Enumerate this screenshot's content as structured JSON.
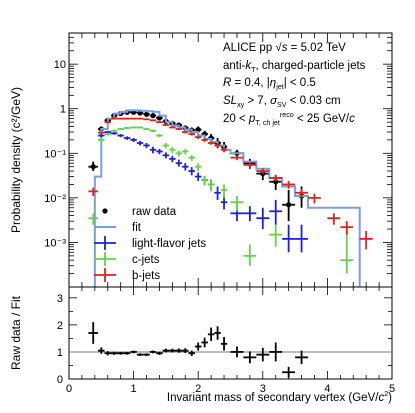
{
  "chart_data": [
    {
      "type": "scatter",
      "panel": "top",
      "ylabel": "Probability density (c²/GeV)",
      "yscale": "log",
      "xlim": [
        0,
        5
      ],
      "ylim": [
        0.0001,
        50
      ],
      "y_tick_labels": [
        "10⁻³",
        "10⁻²",
        "10⁻¹",
        "1",
        "10"
      ],
      "annotations": [
        "ALICE pp √s = 5.02 TeV",
        "anti-kT, charged-particle jets",
        "R = 0.4, |ηjet| < 0.5",
        "SLxy > 7, σSV < 0.03 cm",
        "20 < pT,ch jet reco < 25 GeV/c"
      ],
      "annotation_rich": [
        [
          [
            "ALICE pp ",
            0
          ],
          [
            "√",
            0
          ],
          [
            "s",
            1
          ],
          [
            " = 5.02 TeV",
            0
          ]
        ],
        [
          [
            "anti-",
            0
          ],
          [
            "k",
            1
          ],
          [
            "T",
            3
          ],
          [
            ", charged-particle jets",
            0
          ]
        ],
        [
          [
            "R",
            1
          ],
          [
            " = 0.4, |",
            0
          ],
          [
            "η",
            1
          ],
          [
            "jet",
            3
          ],
          [
            "| < 0.5",
            0
          ]
        ],
        [
          [
            " S",
            1
          ],
          [
            "L",
            1
          ],
          [
            "xy",
            3
          ],
          [
            " > 7, ",
            0
          ],
          [
            "σ",
            1
          ],
          [
            "SV",
            3
          ],
          [
            " < 0.03 cm",
            0
          ]
        ],
        [
          [
            "20 < ",
            0
          ],
          [
            "p",
            1
          ],
          [
            "T, ch jet",
            3
          ],
          [
            "reco",
            2
          ],
          [
            " < 25 GeV/",
            0
          ],
          [
            "c",
            1
          ]
        ]
      ],
      "legend": {
        "placement": "bottom-left",
        "entries": [
          {
            "label": "raw data",
            "marker": "dot",
            "color": "#000000"
          },
          {
            "label": "fit",
            "marker": "line",
            "color": "#7b9fd6"
          },
          {
            "label": "light-flavor jets",
            "marker": "cross",
            "color": "#1f1fe0"
          },
          {
            "label": "c-jets",
            "marker": "cross",
            "color": "#66d24a"
          },
          {
            "label": "b-jets",
            "marker": "cross",
            "color": "#e0211c"
          }
        ]
      },
      "series": [
        {
          "name": "raw data",
          "color": "#000000",
          "marker": "dot",
          "x": [
            0.375,
            0.5,
            0.6,
            0.7,
            0.8,
            0.9,
            1.0,
            1.1,
            1.2,
            1.3,
            1.4,
            1.5,
            1.6,
            1.7,
            1.8,
            1.9,
            2.0,
            2.1,
            2.2,
            2.3,
            2.4,
            2.6,
            2.8,
            3.0,
            3.2,
            3.4,
            3.6
          ],
          "y": [
            0.05,
            0.35,
            0.55,
            0.7,
            0.78,
            0.83,
            0.83,
            0.8,
            0.75,
            0.7,
            0.62,
            0.52,
            0.47,
            0.43,
            0.37,
            0.33,
            0.34,
            0.27,
            0.22,
            0.17,
            0.14,
            0.1,
            0.06,
            0.035,
            0.023,
            0.007,
            0.011
          ],
          "xerr": [
            0.075,
            0.05,
            0.05,
            0.05,
            0.05,
            0.05,
            0.05,
            0.05,
            0.05,
            0.05,
            0.05,
            0.05,
            0.05,
            0.05,
            0.05,
            0.05,
            0.05,
            0.05,
            0.05,
            0.05,
            0.05,
            0.1,
            0.1,
            0.1,
            0.1,
            0.1,
            0.1
          ],
          "ylo": [
            0.04,
            0.31,
            0.5,
            0.65,
            0.73,
            0.78,
            0.78,
            0.75,
            0.7,
            0.65,
            0.57,
            0.47,
            0.42,
            0.38,
            0.32,
            0.28,
            0.29,
            0.22,
            0.18,
            0.13,
            0.11,
            0.08,
            0.045,
            0.025,
            0.015,
            0.003,
            0.006
          ],
          "yhi": [
            0.065,
            0.4,
            0.6,
            0.75,
            0.83,
            0.88,
            0.88,
            0.85,
            0.8,
            0.75,
            0.67,
            0.57,
            0.52,
            0.48,
            0.42,
            0.38,
            0.4,
            0.32,
            0.27,
            0.22,
            0.18,
            0.12,
            0.075,
            0.045,
            0.032,
            0.015,
            0.018
          ]
        },
        {
          "name": "fit",
          "color": "#7b9fd6",
          "marker": "step",
          "edges": [
            0.4,
            0.5,
            0.6,
            0.7,
            0.8,
            0.9,
            1.0,
            1.1,
            1.2,
            1.3,
            1.4,
            1.5,
            1.6,
            1.7,
            1.8,
            1.9,
            2.0,
            2.1,
            2.2,
            2.3,
            2.4,
            2.5,
            2.7,
            2.9,
            3.1,
            3.3,
            3.5,
            3.7,
            4.5
          ],
          "y": [
            0.03,
            0.35,
            0.6,
            0.78,
            0.85,
            0.92,
            0.92,
            0.9,
            0.88,
            0.85,
            0.7,
            0.5,
            0.42,
            0.38,
            0.34,
            0.3,
            0.25,
            0.21,
            0.18,
            0.15,
            0.12,
            0.1,
            0.065,
            0.045,
            0.028,
            0.018,
            0.011,
            0.006
          ]
        },
        {
          "name": "light-flavor jets",
          "color": "#1f1fe0",
          "marker": "cross",
          "x": [
            0.5,
            0.6,
            0.7,
            0.8,
            0.9,
            1.0,
            1.1,
            1.2,
            1.3,
            1.4,
            1.5,
            1.6,
            1.7,
            1.8,
            1.9,
            2.0,
            2.1,
            2.2,
            2.3,
            2.4,
            2.6,
            2.8,
            3.0,
            3.2,
            3.4,
            3.6
          ],
          "y": [
            0.25,
            0.3,
            0.28,
            0.25,
            0.22,
            0.2,
            0.17,
            0.15,
            0.12,
            0.11,
            0.09,
            0.075,
            0.06,
            0.05,
            0.04,
            0.03,
            0.025,
            0.02,
            0.013,
            0.008,
            0.0045,
            0.0045,
            0.0035,
            0.005,
            0.0012,
            0.0012
          ],
          "xerr": [
            0.05,
            0.05,
            0.05,
            0.05,
            0.05,
            0.05,
            0.05,
            0.05,
            0.05,
            0.05,
            0.05,
            0.05,
            0.05,
            0.05,
            0.05,
            0.05,
            0.05,
            0.05,
            0.05,
            0.05,
            0.1,
            0.1,
            0.1,
            0.1,
            0.1,
            0.1
          ],
          "ylo": [
            0.23,
            0.28,
            0.26,
            0.23,
            0.2,
            0.18,
            0.15,
            0.13,
            0.1,
            0.095,
            0.077,
            0.063,
            0.05,
            0.041,
            0.032,
            0.024,
            0.019,
            0.015,
            0.009,
            0.0055,
            0.003,
            0.003,
            0.002,
            0.0025,
            0.0006,
            0.0006
          ],
          "yhi": [
            0.27,
            0.32,
            0.3,
            0.27,
            0.24,
            0.22,
            0.19,
            0.17,
            0.14,
            0.125,
            0.105,
            0.088,
            0.072,
            0.06,
            0.049,
            0.037,
            0.031,
            0.026,
            0.018,
            0.012,
            0.0065,
            0.0065,
            0.006,
            0.009,
            0.0025,
            0.0025
          ]
        },
        {
          "name": "c-jets",
          "color": "#66d24a",
          "marker": "cross",
          "x": [
            0.375,
            0.5,
            0.6,
            0.7,
            0.8,
            0.9,
            1.0,
            1.1,
            1.2,
            1.3,
            1.4,
            1.5,
            1.6,
            1.7,
            1.8,
            1.9,
            2.0,
            2.1,
            2.2,
            2.4,
            2.6,
            2.8,
            3.2,
            4.3
          ],
          "y": [
            0.0035,
            0.2,
            0.27,
            0.32,
            0.35,
            0.37,
            0.38,
            0.38,
            0.35,
            0.32,
            0.25,
            0.15,
            0.12,
            0.1,
            0.11,
            0.08,
            0.05,
            0.025,
            0.02,
            0.015,
            0.008,
            0.0005,
            0.0015,
            0.0004
          ],
          "xerr": [
            0.075,
            0.05,
            0.05,
            0.05,
            0.05,
            0.05,
            0.05,
            0.05,
            0.05,
            0.05,
            0.05,
            0.05,
            0.05,
            0.05,
            0.05,
            0.05,
            0.05,
            0.05,
            0.05,
            0.05,
            0.1,
            0.1,
            0.1,
            0.1
          ],
          "ylo": [
            0.0025,
            0.18,
            0.25,
            0.3,
            0.33,
            0.35,
            0.36,
            0.36,
            0.33,
            0.3,
            0.23,
            0.13,
            0.1,
            0.085,
            0.095,
            0.068,
            0.04,
            0.019,
            0.014,
            0.01,
            0.005,
            0.0003,
            0.0008,
            0.0002
          ],
          "yhi": [
            0.0045,
            0.22,
            0.29,
            0.34,
            0.37,
            0.39,
            0.4,
            0.4,
            0.37,
            0.34,
            0.27,
            0.17,
            0.14,
            0.115,
            0.125,
            0.092,
            0.06,
            0.031,
            0.026,
            0.02,
            0.011,
            0.0009,
            0.0025,
            0.002
          ]
        },
        {
          "name": "b-jets",
          "color": "#e0211c",
          "marker": "cross",
          "x": [
            0.375,
            0.5,
            0.6,
            0.7,
            0.8,
            0.9,
            1.0,
            1.1,
            1.2,
            1.3,
            1.4,
            1.5,
            1.6,
            1.7,
            1.8,
            1.9,
            2.0,
            2.1,
            2.2,
            2.3,
            2.4,
            2.6,
            2.8,
            3.0,
            3.2,
            3.4,
            3.6,
            3.8,
            4.1,
            4.3,
            4.6
          ],
          "y": [
            0.014,
            0.29,
            0.5,
            0.6,
            0.6,
            0.6,
            0.6,
            0.6,
            0.58,
            0.55,
            0.5,
            0.43,
            0.38,
            0.35,
            0.3,
            0.27,
            0.23,
            0.2,
            0.17,
            0.15,
            0.12,
            0.08,
            0.055,
            0.04,
            0.028,
            0.02,
            0.013,
            0.01,
            0.0035,
            0.0022,
            0.0012
          ],
          "xerr": [
            0.075,
            0.05,
            0.05,
            0.05,
            0.05,
            0.05,
            0.05,
            0.05,
            0.05,
            0.05,
            0.05,
            0.05,
            0.05,
            0.05,
            0.05,
            0.05,
            0.05,
            0.05,
            0.05,
            0.05,
            0.05,
            0.1,
            0.1,
            0.1,
            0.1,
            0.1,
            0.1,
            0.1,
            0.1,
            0.1,
            0.1
          ],
          "ylo": [
            0.011,
            0.27,
            0.48,
            0.58,
            0.58,
            0.58,
            0.58,
            0.58,
            0.56,
            0.53,
            0.48,
            0.41,
            0.36,
            0.33,
            0.28,
            0.25,
            0.21,
            0.18,
            0.155,
            0.135,
            0.105,
            0.07,
            0.047,
            0.034,
            0.023,
            0.016,
            0.01,
            0.0075,
            0.0025,
            0.0015,
            0.0007
          ],
          "yhi": [
            0.017,
            0.31,
            0.52,
            0.62,
            0.62,
            0.62,
            0.62,
            0.62,
            0.6,
            0.57,
            0.52,
            0.45,
            0.4,
            0.37,
            0.32,
            0.29,
            0.25,
            0.22,
            0.185,
            0.165,
            0.135,
            0.09,
            0.063,
            0.046,
            0.033,
            0.024,
            0.016,
            0.0125,
            0.0045,
            0.003,
            0.0018
          ]
        }
      ]
    },
    {
      "type": "scatter",
      "panel": "bottom",
      "xlabel": "Invariant mass of secondary vertex (GeV/c²)",
      "xlabel_rich": [
        [
          "Invariant mass of secondary vertex (GeV/",
          0
        ],
        [
          "c",
          1
        ],
        [
          "2",
          2
        ],
        [
          ")",
          0
        ]
      ],
      "ylabel": "Raw data / Fit",
      "xlim": [
        0,
        5
      ],
      "ylim": [
        0,
        3.4
      ],
      "x_tick_labels": [
        "0",
        "1",
        "2",
        "3",
        "4",
        "5"
      ],
      "y_tick_labels": [
        "0",
        "1",
        "2",
        "3"
      ],
      "reference_line": 1,
      "series": [
        {
          "name": "ratio",
          "color": "#000000",
          "marker": "cross",
          "x": [
            0.375,
            0.5,
            0.6,
            0.7,
            0.8,
            0.9,
            1.0,
            1.1,
            1.2,
            1.3,
            1.4,
            1.5,
            1.6,
            1.7,
            1.8,
            1.9,
            2.0,
            2.1,
            2.2,
            2.3,
            2.4,
            2.6,
            2.8,
            3.0,
            3.2,
            3.4,
            3.6
          ],
          "y": [
            1.7,
            1.05,
            0.95,
            0.95,
            0.95,
            0.95,
            1.0,
            0.9,
            0.9,
            1.0,
            0.95,
            1.05,
            1.05,
            1.05,
            1.05,
            0.95,
            1.2,
            1.35,
            1.65,
            1.7,
            1.3,
            1.0,
            0.8,
            0.9,
            1.0,
            0.25,
            0.8
          ],
          "xerr": [
            0.075,
            0.05,
            0.05,
            0.05,
            0.05,
            0.05,
            0.05,
            0.05,
            0.05,
            0.05,
            0.05,
            0.05,
            0.05,
            0.05,
            0.05,
            0.05,
            0.05,
            0.05,
            0.05,
            0.05,
            0.05,
            0.1,
            0.1,
            0.1,
            0.1,
            0.1,
            0.1
          ],
          "yerr": [
            0.4,
            0.12,
            0.08,
            0.06,
            0.05,
            0.05,
            0.05,
            0.05,
            0.05,
            0.05,
            0.06,
            0.07,
            0.07,
            0.08,
            0.09,
            0.1,
            0.15,
            0.18,
            0.25,
            0.25,
            0.25,
            0.2,
            0.22,
            0.25,
            0.35,
            0.2,
            0.25
          ]
        }
      ]
    }
  ]
}
